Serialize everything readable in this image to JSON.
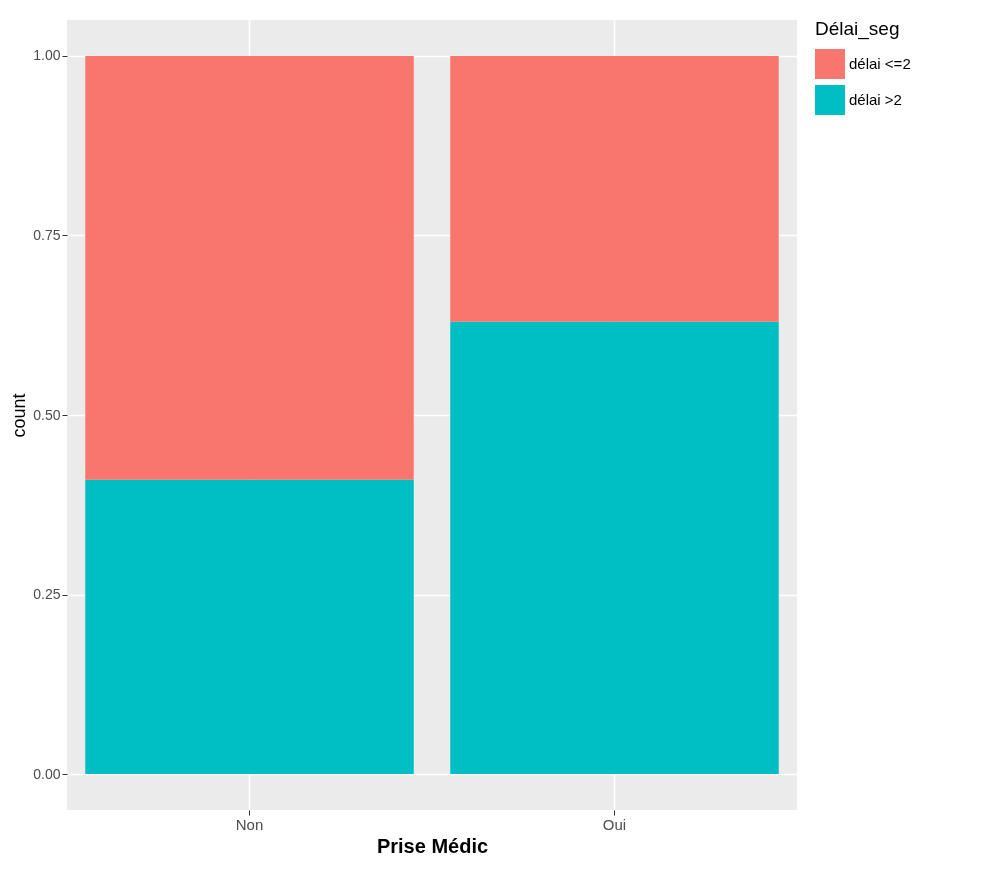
{
  "chart_data": {
    "type": "bar",
    "stacked": true,
    "xlabel": "Prise Médic",
    "ylabel": "count",
    "legend_title": "Délai_seg",
    "legend": "right",
    "grid": true,
    "categories": [
      "Non",
      "Oui"
    ],
    "series": [
      {
        "name": "délai >2",
        "color": "#00bfc4",
        "values": [
          0.41,
          0.63
        ]
      },
      {
        "name": "délai <=2",
        "color": "#f8766d",
        "values": [
          0.59,
          0.37
        ]
      }
    ],
    "ylim": [
      -0.05,
      1.05
    ],
    "yticks": [
      {
        "value": 0,
        "label": "0.00"
      },
      {
        "value": 0.25,
        "label": "0.25"
      },
      {
        "value": 0.5,
        "label": "0.50"
      },
      {
        "value": 0.75,
        "label": "0.75"
      },
      {
        "value": 1,
        "label": "1.00"
      }
    ]
  }
}
